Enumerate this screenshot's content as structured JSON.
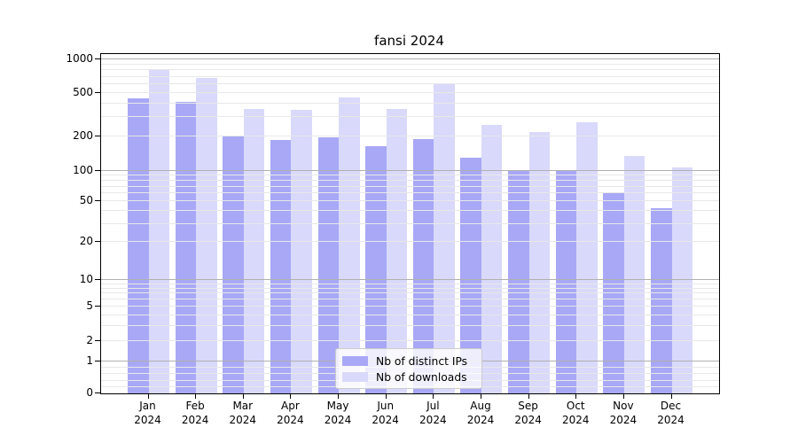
{
  "title": "fansi 2024",
  "colors": {
    "ips_bar": "#a8a8f6",
    "downloads_bar": "#d9d9fb",
    "grid_major": "#b0b0b0",
    "grid_minor": "#e8e8e8",
    "axis": "#000000"
  },
  "legend": {
    "position": "lower center",
    "items": [
      {
        "label": "Nb of distinct IPs",
        "color_key": "ips_bar"
      },
      {
        "label": "Nb of downloads",
        "color_key": "downloads_bar"
      }
    ]
  },
  "chart_data": {
    "type": "bar",
    "title": "fansi 2024",
    "categories": [
      "Jan 2024",
      "Feb 2024",
      "Mar 2024",
      "Apr 2024",
      "May 2024",
      "Jun 2024",
      "Jul 2024",
      "Aug 2024",
      "Sep 2024",
      "Oct 2024",
      "Nov 2024",
      "Dec 2024"
    ],
    "series": [
      {
        "name": "Nb of distinct IPs",
        "values": [
          450,
          415,
          205,
          185,
          195,
          165,
          190,
          130,
          100,
          102,
          61,
          43
        ]
      },
      {
        "name": "Nb of downloads",
        "values": [
          810,
          680,
          360,
          350,
          455,
          360,
          610,
          255,
          220,
          270,
          135,
          107
        ]
      }
    ],
    "xlabel": "",
    "ylabel": "",
    "yaxis": {
      "scale": "symlog",
      "tick_labels": [
        "0",
        "1",
        "2",
        "5",
        "10",
        "20",
        "50",
        "100",
        "200",
        "500",
        "1000"
      ],
      "ylim": [
        0,
        1000
      ]
    },
    "grid": "on",
    "legend_position": "lower center"
  }
}
